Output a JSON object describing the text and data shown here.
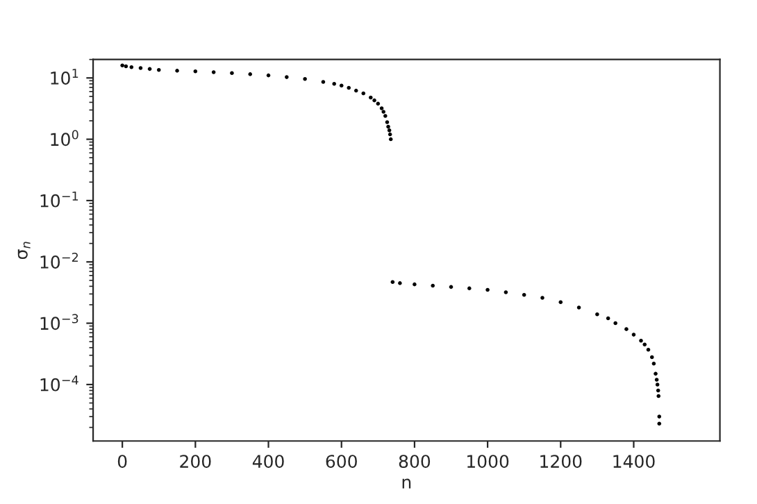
{
  "chart_data": {
    "type": "scatter",
    "xlabel": "n",
    "ylabel": "σ$_{n}$",
    "log": "y",
    "grid": false,
    "legend": false,
    "xlim": [
      -80,
      1636
    ],
    "xticks": [
      0,
      200,
      400,
      600,
      800,
      1000,
      1200,
      1400
    ],
    "ylim": [
      1.2e-05,
      20
    ],
    "yticks": [
      {
        "value": 0.0001,
        "label": "10$^{−4}$"
      },
      {
        "value": 0.001,
        "label": "10$^{−3}$"
      },
      {
        "value": 0.01,
        "label": "10$^{−2}$"
      },
      {
        "value": 0.1,
        "label": "10$^{−1}$"
      },
      {
        "value": 1,
        "label": "10$^{0}$"
      },
      {
        "value": 10,
        "label": "10$^{1}$"
      }
    ],
    "series": [
      {
        "color": "#000000",
        "x": [
          0,
          10,
          25,
          50,
          75,
          100,
          150,
          200,
          250,
          300,
          350,
          400,
          450,
          500,
          550,
          580,
          600,
          620,
          640,
          660,
          680,
          690,
          700,
          710,
          715,
          720,
          725,
          728,
          731,
          733,
          735
        ],
        "values": [
          16,
          15.5,
          15,
          14.5,
          14,
          13.5,
          13.1,
          12.8,
          12.4,
          12,
          11.5,
          11,
          10.3,
          9.6,
          8.6,
          8,
          7.5,
          6.9,
          6.2,
          5.6,
          4.8,
          4.3,
          3.8,
          3.2,
          2.8,
          2.4,
          1.9,
          1.6,
          1.4,
          1.2,
          1.0
        ]
      },
      {
        "color": "#000000",
        "x": [
          740,
          760,
          800,
          850,
          900,
          950,
          1000,
          1050,
          1100,
          1150,
          1200,
          1250,
          1300,
          1330,
          1350,
          1380,
          1400,
          1420,
          1430,
          1440,
          1450,
          1455,
          1460,
          1463,
          1465,
          1467,
          1468,
          1470,
          1470
        ],
        "values": [
          0.0047,
          0.0045,
          0.0043,
          0.0041,
          0.0039,
          0.0037,
          0.0035,
          0.0032,
          0.0029,
          0.0026,
          0.0022,
          0.0018,
          0.0014,
          0.0012,
          0.001,
          0.0008,
          0.00065,
          0.00052,
          0.00045,
          0.00037,
          0.00028,
          0.00022,
          0.00015,
          0.00012,
          0.0001,
          8e-05,
          6.5e-05,
          3e-05,
          2.3e-05
        ]
      }
    ]
  }
}
